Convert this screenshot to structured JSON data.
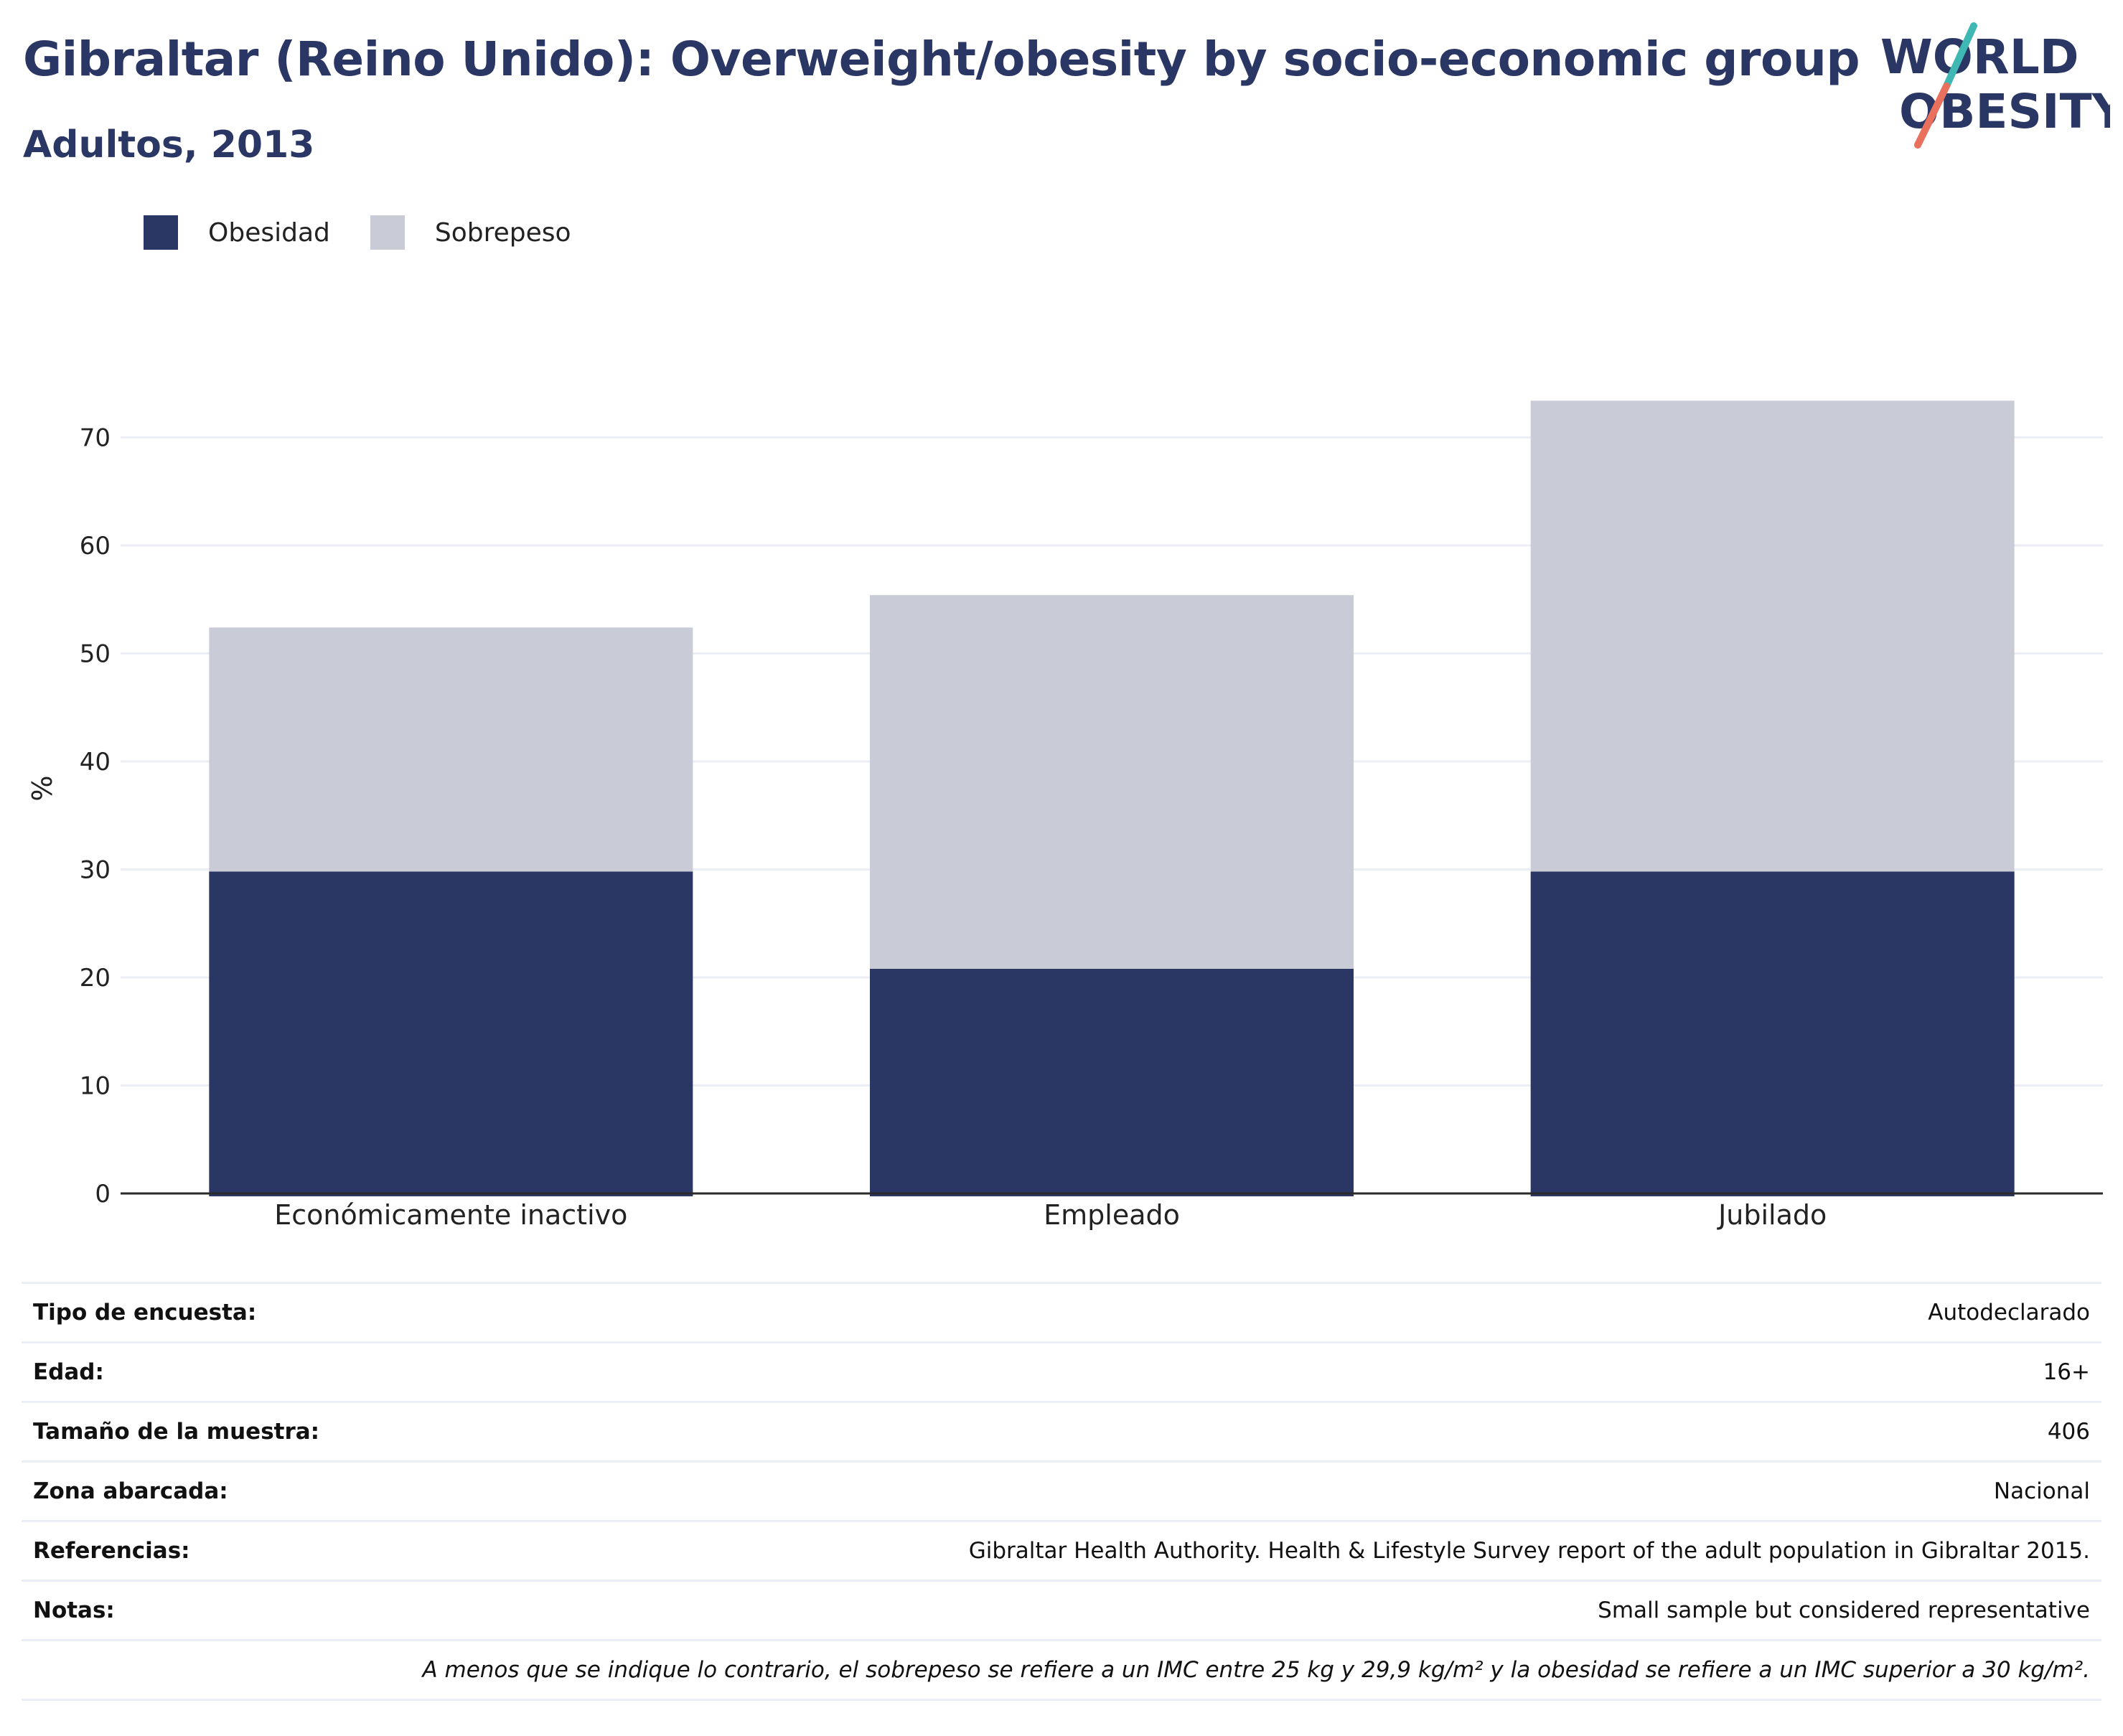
{
  "header": {
    "title": "Gibraltar (Reino Unido): Overweight/obesity by socio-economic group",
    "subtitle": "Adultos, 2013"
  },
  "logo": {
    "line1": "WORLD",
    "line2": "OBESITY",
    "colors": {
      "text": "#2a3663",
      "slash_teal": "#3fb8b3",
      "slash_coral": "#e8705c"
    }
  },
  "colors": {
    "obesidad": "#2a3663",
    "sobrepeso": "#c9cbd6",
    "grid": "#eceef5",
    "axis": "#2a2a2a"
  },
  "legend": {
    "items": [
      {
        "label": "Obesidad",
        "color": "#2a3663"
      },
      {
        "label": "Sobrepeso",
        "color": "#c9cbd6"
      }
    ],
    "placement": "top-left"
  },
  "chart_data": {
    "type": "bar",
    "stacked": true,
    "categories": [
      "Económicamente inactivo",
      "Empleado",
      "Jubilado"
    ],
    "series": [
      {
        "name": "Obesidad",
        "values": [
          29.8,
          20.8,
          29.8
        ]
      },
      {
        "name": "Sobrepeso",
        "values": [
          22.6,
          34.6,
          43.6
        ]
      }
    ],
    "title": "Gibraltar (Reino Unido): Overweight/obesity by socio-economic group",
    "subtitle": "Adultos, 2013",
    "ylabel": "%",
    "xlabel": "",
    "ylim": [
      0,
      75
    ],
    "yticks": [
      0,
      10,
      20,
      30,
      40,
      50,
      60,
      70
    ],
    "grid": true
  },
  "info": {
    "rows": [
      {
        "label": "Tipo de encuesta:",
        "value": "Autodeclarado"
      },
      {
        "label": "Edad:",
        "value": "16+"
      },
      {
        "label": "Tamaño de la muestra:",
        "value": "406"
      },
      {
        "label": "Zona abarcada:",
        "value": "Nacional"
      },
      {
        "label": "Referencias:",
        "value": "Gibraltar Health Authority. Health & Lifestyle Survey report of the adult population in Gibraltar 2015."
      },
      {
        "label": "Notas:",
        "value": "Small sample but considered representative"
      }
    ],
    "footnote": "A menos que se indique lo contrario, el sobrepeso se refiere a un IMC entre 25 kg y 29,9 kg/m² y la obesidad se refiere a un IMC superior a 30 kg/m²."
  }
}
